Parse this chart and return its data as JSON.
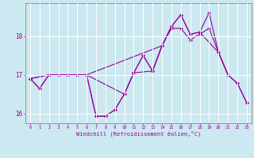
{
  "xlabel": "Windchill (Refroidissement éolien,°C)",
  "background_color": "#cce8f0",
  "line_color": "#990099",
  "grid_color": "#ffffff",
  "x_ticks": [
    0,
    1,
    2,
    3,
    4,
    5,
    6,
    7,
    8,
    9,
    10,
    11,
    12,
    13,
    14,
    15,
    16,
    17,
    18,
    19,
    20,
    21,
    22,
    23
  ],
  "ylim": [
    15.75,
    18.85
  ],
  "yticks": [
    16,
    17,
    18
  ],
  "s1_x": [
    0,
    1,
    2,
    3,
    4,
    5,
    6,
    7,
    8,
    9,
    10,
    11,
    12,
    13,
    14,
    15,
    16,
    17,
    18,
    19,
    20,
    21,
    22,
    23
  ],
  "s1_y": [
    16.9,
    16.65,
    17.0,
    17.0,
    17.0,
    17.0,
    17.0,
    15.93,
    15.93,
    16.1,
    16.5,
    17.05,
    17.5,
    17.1,
    17.75,
    18.2,
    18.2,
    17.9,
    18.05,
    18.2,
    17.58,
    17.0,
    16.78,
    16.28
  ],
  "s2_x": [
    0,
    1,
    2,
    3,
    4,
    5,
    6,
    7,
    8,
    9,
    10,
    11,
    12,
    13,
    14,
    15,
    16,
    17,
    18,
    19,
    20,
    21,
    22,
    23
  ],
  "s2_y": [
    16.9,
    16.65,
    17.0,
    17.0,
    17.0,
    17.0,
    17.0,
    15.93,
    15.93,
    16.1,
    16.5,
    17.05,
    17.5,
    17.1,
    17.75,
    18.25,
    18.55,
    18.05,
    18.1,
    18.6,
    17.58,
    17.0,
    16.78,
    16.28
  ],
  "s3_x": [
    0,
    2,
    3,
    4,
    5,
    6,
    14,
    15,
    16,
    17,
    18,
    20,
    21
  ],
  "s3_y": [
    16.9,
    17.0,
    17.0,
    17.0,
    17.0,
    17.0,
    17.75,
    18.25,
    18.55,
    18.05,
    18.1,
    17.58,
    17.0
  ],
  "s4_x": [
    0,
    2,
    3,
    4,
    5,
    6,
    10,
    11,
    13,
    14
  ],
  "s4_y": [
    16.9,
    17.0,
    17.0,
    17.0,
    17.0,
    17.0,
    16.5,
    17.05,
    17.1,
    17.75
  ]
}
